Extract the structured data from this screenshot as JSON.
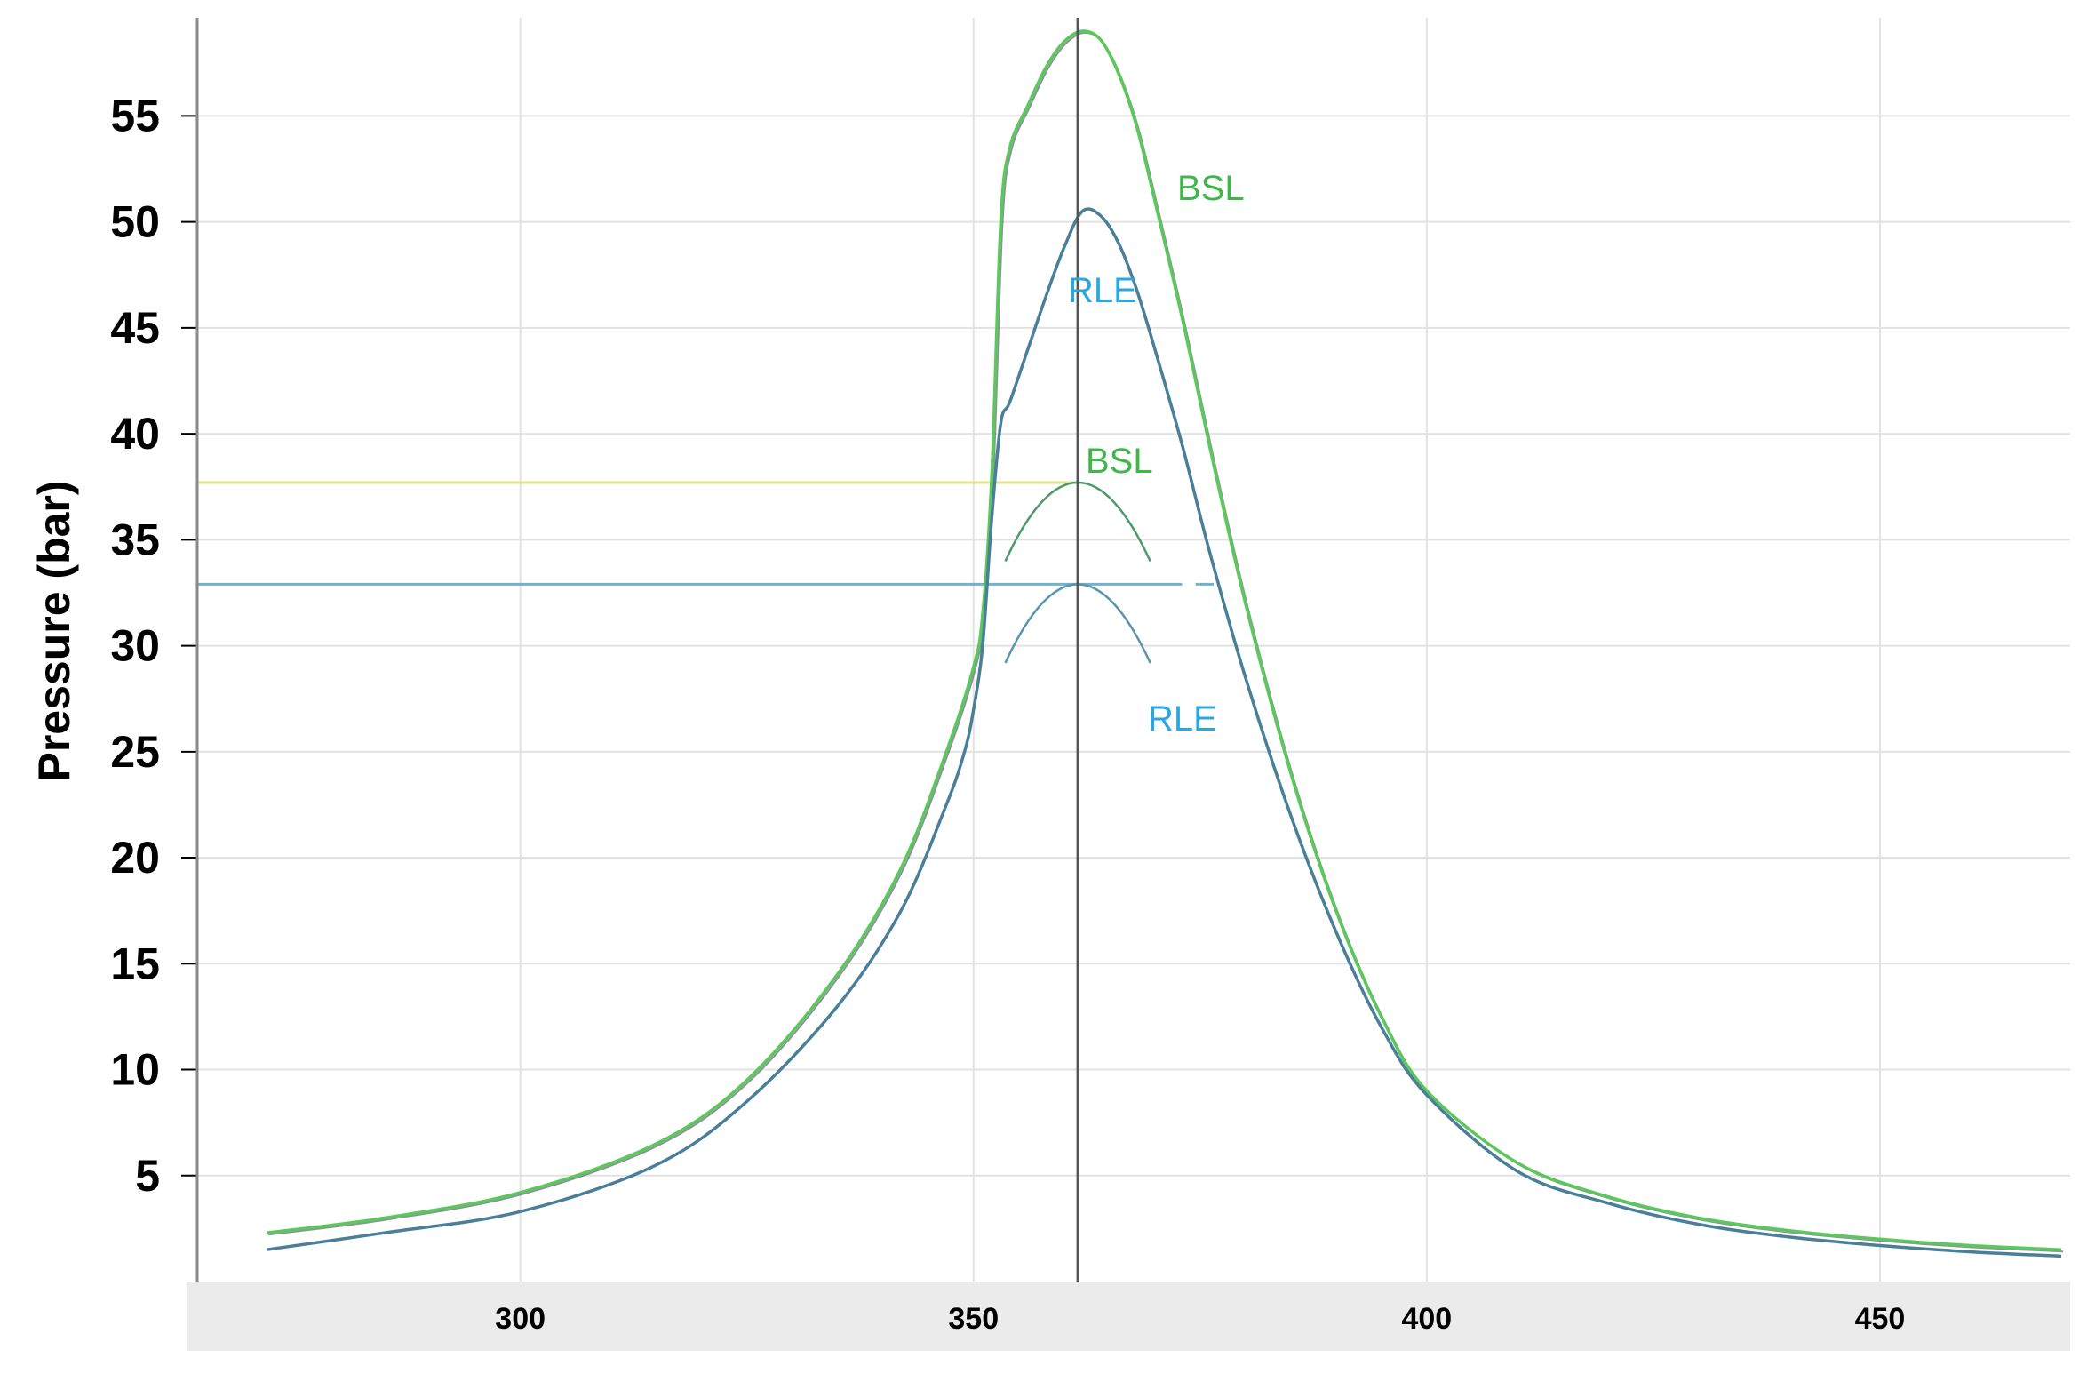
{
  "chart_data": {
    "type": "line",
    "title": "",
    "xlabel": "",
    "ylabel": "Pressure (bar)",
    "xlim": [
      265,
      470
    ],
    "ylim": [
      0,
      59
    ],
    "xticks": [
      "300",
      "350",
      "400",
      "450"
    ],
    "yticks": [
      "5",
      "10",
      "15",
      "20",
      "25",
      "30",
      "35",
      "40",
      "45",
      "50",
      "55"
    ],
    "grid": true,
    "legend": "none",
    "colors": {
      "bsl": "#5cc85c",
      "rle": "#4a7f99",
      "bsl_label": "#3fb54a",
      "rle_label": "#2aa7e0",
      "bsl_peak_line": "#dde48a",
      "rle_peak_line": "#6fb3cc",
      "axis_bar": "#ebebeb",
      "grid": "#e2e2e2"
    },
    "series": [
      {
        "key": "bsl",
        "x": [
          272,
          285,
          300,
          315,
          325,
          335,
          342,
          347,
          350,
          351,
          352,
          353,
          354,
          356,
          358,
          360,
          362,
          364,
          366,
          368,
          370,
          373,
          376,
          380,
          385,
          390,
          395,
          400,
          410,
          420,
          430,
          440,
          450,
          460,
          470
        ],
        "y": [
          2.3,
          3.0,
          4.2,
          6.5,
          9.5,
          14.5,
          19.5,
          25.0,
          29.0,
          31.5,
          38.0,
          50.0,
          53.5,
          55.5,
          57.3,
          58.5,
          59.0,
          58.6,
          57.0,
          54.5,
          51.0,
          45.5,
          39.5,
          32.0,
          24.0,
          17.5,
          12.5,
          9.0,
          5.6,
          4.0,
          3.0,
          2.4,
          2.0,
          1.7,
          1.5
        ]
      },
      {
        "key": "rle",
        "x": [
          272,
          285,
          300,
          315,
          325,
          335,
          342,
          347,
          349,
          350,
          351,
          352,
          353,
          354,
          356,
          358,
          360,
          362,
          364,
          366,
          368,
          370,
          373,
          376,
          380,
          385,
          390,
          395,
          400,
          410,
          420,
          430,
          440,
          450,
          460,
          470
        ],
        "y": [
          1.5,
          2.3,
          3.3,
          5.5,
          8.5,
          13.0,
          17.5,
          22.5,
          25.0,
          27.0,
          30.0,
          36.0,
          40.5,
          41.5,
          44.0,
          46.5,
          48.8,
          50.5,
          50.3,
          49.0,
          46.8,
          44.0,
          39.5,
          34.5,
          28.5,
          22.0,
          16.5,
          12.0,
          8.8,
          5.2,
          3.7,
          2.7,
          2.1,
          1.7,
          1.4,
          1.2
        ]
      }
    ],
    "peak_markers": [
      {
        "key": "bsl",
        "x": 361.5,
        "y": 37.7
      },
      {
        "key": "rle",
        "x": 361.5,
        "y": 32.9
      }
    ],
    "annotations": [
      {
        "text": "BSL",
        "key": "bsl"
      },
      {
        "text": "RLE",
        "key": "rle"
      },
      {
        "text": "BSL",
        "key": "bsl"
      },
      {
        "text": "RLE",
        "key": "rle"
      }
    ]
  }
}
